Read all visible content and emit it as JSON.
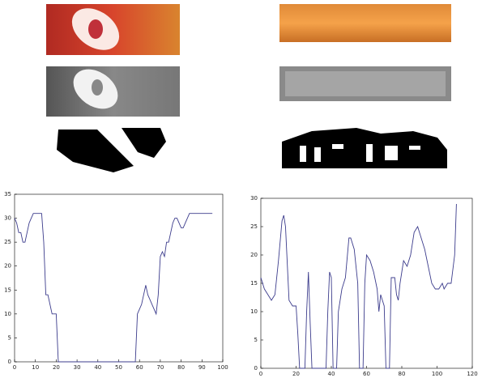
{
  "chart_data": [
    {
      "type": "line",
      "xlim": [
        0,
        100
      ],
      "xticks": [
        0,
        10,
        20,
        30,
        40,
        50,
        60,
        70,
        80,
        90,
        100
      ],
      "ylim": [
        0,
        35
      ],
      "yticks": [
        0,
        5,
        10,
        15,
        20,
        25,
        30,
        35
      ],
      "series": [
        {
          "color": "#3c3c8c",
          "x": [
            0,
            1,
            2,
            3,
            4,
            5,
            6,
            7,
            8,
            9,
            10,
            11,
            12,
            13,
            14,
            15,
            16,
            17,
            18,
            19,
            20,
            21,
            58,
            59,
            60,
            61,
            62,
            63,
            64,
            65,
            66,
            67,
            68,
            69,
            70,
            71,
            72,
            73,
            74,
            75,
            76,
            77,
            78,
            79,
            80,
            81,
            82,
            83,
            84,
            95
          ],
          "values": [
            30,
            29,
            27,
            27,
            25,
            25,
            27,
            29,
            30,
            31,
            31,
            31,
            31,
            31,
            25,
            14,
            14,
            12,
            10,
            10,
            10,
            0,
            0,
            10,
            11,
            12,
            14,
            16,
            14,
            13,
            12,
            11,
            10,
            14,
            22,
            23,
            22,
            25,
            25,
            27,
            29,
            30,
            30,
            29,
            28,
            28,
            29,
            30,
            31,
            31
          ]
        }
      ]
    },
    {
      "type": "line",
      "xlim": [
        0,
        120
      ],
      "xticks": [
        0,
        20,
        40,
        60,
        80,
        100,
        120
      ],
      "ylim": [
        0,
        30
      ],
      "yticks": [
        0,
        5,
        10,
        15,
        20,
        25,
        30
      ],
      "series": [
        {
          "color": "#3c3c8c",
          "x": [
            0,
            2,
            4,
            6,
            8,
            10,
            12,
            13,
            14,
            16,
            18,
            20,
            21,
            22,
            25,
            26,
            27,
            28,
            29,
            37,
            38,
            39,
            40,
            41,
            43,
            44,
            46,
            48,
            50,
            51,
            53,
            55,
            56,
            58,
            59,
            60,
            62,
            64,
            66,
            67,
            68,
            70,
            71,
            73,
            74,
            76,
            77,
            78,
            79,
            80,
            81,
            83,
            85,
            87,
            89,
            91,
            93,
            95,
            97,
            99,
            101,
            103,
            104,
            106,
            108,
            110,
            111
          ],
          "values": [
            16,
            14,
            13,
            12,
            13,
            19,
            26,
            27,
            25,
            12,
            11,
            11,
            6,
            0,
            0,
            10,
            17,
            8,
            0,
            0,
            10,
            17,
            16,
            0,
            0,
            10,
            14,
            16,
            23,
            23,
            21,
            15,
            0,
            0,
            15,
            20,
            19,
            17,
            14,
            10,
            13,
            11,
            0,
            0,
            16,
            16,
            13,
            12,
            15,
            17,
            19,
            18,
            20,
            24,
            25,
            23,
            21,
            18,
            15,
            14,
            14,
            15,
            14,
            15,
            15,
            20,
            29
          ]
        }
      ]
    }
  ]
}
